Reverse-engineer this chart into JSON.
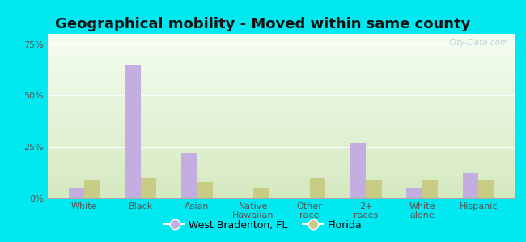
{
  "title": "Geographical mobility - Moved within same county",
  "categories": [
    "White",
    "Black",
    "Asian",
    "Native\nHawaiian",
    "Other\nrace",
    "2+\nraces",
    "White\nalone",
    "Hispanic"
  ],
  "west_bradenton": [
    5,
    65,
    22,
    0,
    0,
    27,
    5,
    12
  ],
  "florida": [
    9,
    10,
    8,
    5,
    10,
    9,
    9,
    9
  ],
  "bar_color_wb": "#c4aee0",
  "bar_color_fl": "#c8cc84",
  "bg_color_outer": "#00e8f0",
  "bg_color_inner_top": "#f5fdf0",
  "bg_color_inner_bottom": "#d4e8c0",
  "yticks": [
    0,
    25,
    50,
    75
  ],
  "ylim": [
    0,
    80
  ],
  "legend_wb": "West Bradenton, FL",
  "legend_fl": "Florida",
  "watermark": "City-Data.com",
  "title_fontsize": 13,
  "tick_fontsize": 8,
  "legend_fontsize": 9
}
